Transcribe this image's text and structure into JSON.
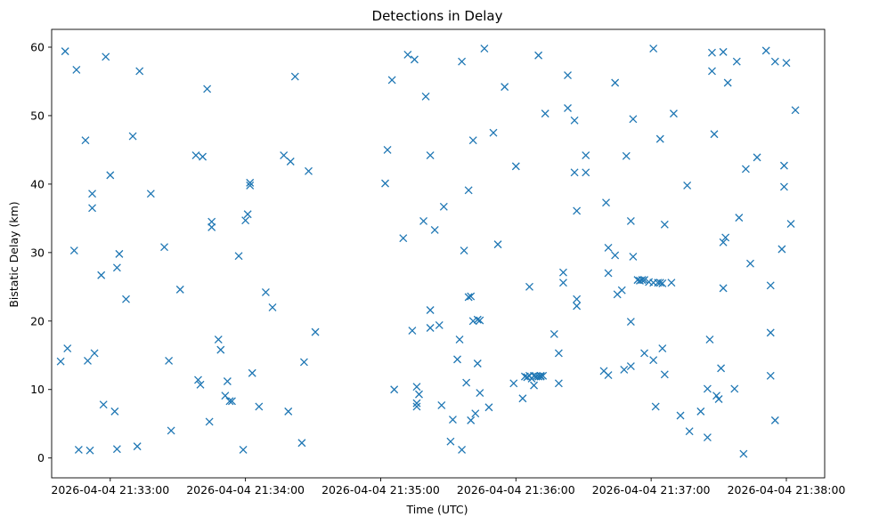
{
  "chart_data": {
    "type": "scatter",
    "title": "Detections in Delay",
    "xlabel": "Time (UTC)",
    "ylabel": "Bistatic Delay (km)",
    "x_unit": "seconds since 2026-04-04 21:33:00 UTC",
    "xlim": [
      -26,
      317
    ],
    "ylim": [
      -2.9,
      62.6
    ],
    "xticks": [
      {
        "value": 0,
        "label": "2026-04-04 21:33:00"
      },
      {
        "value": 60,
        "label": "2026-04-04 21:34:00"
      },
      {
        "value": 120,
        "label": "2026-04-04 21:35:00"
      },
      {
        "value": 180,
        "label": "2026-04-04 21:36:00"
      },
      {
        "value": 240,
        "label": "2026-04-04 21:37:00"
      },
      {
        "value": 300,
        "label": "2026-04-04 21:38:00"
      }
    ],
    "yticks": [
      0,
      10,
      20,
      30,
      40,
      50,
      60
    ],
    "marker": "x",
    "color": "#1f77b4",
    "series": [
      {
        "name": "detections",
        "points": [
          [
            -22,
            14.1
          ],
          [
            -20,
            59.4
          ],
          [
            -19,
            16
          ],
          [
            -16,
            30.3
          ],
          [
            -15,
            56.7
          ],
          [
            -14,
            1.2
          ],
          [
            -11,
            46.4
          ],
          [
            -10,
            14.2
          ],
          [
            -9,
            1.1
          ],
          [
            -8,
            38.6
          ],
          [
            -8,
            36.5
          ],
          [
            -7,
            15.3
          ],
          [
            -4,
            26.7
          ],
          [
            -3,
            7.8
          ],
          [
            -2,
            58.6
          ],
          [
            0,
            41.3
          ],
          [
            2,
            6.8
          ],
          [
            3,
            1.3
          ],
          [
            3,
            27.8
          ],
          [
            4,
            29.8
          ],
          [
            7,
            23.2
          ],
          [
            10,
            47
          ],
          [
            12,
            1.7
          ],
          [
            13,
            56.5
          ],
          [
            18,
            38.6
          ],
          [
            24,
            30.8
          ],
          [
            26,
            14.2
          ],
          [
            27,
            4
          ],
          [
            31,
            24.6
          ],
          [
            38,
            44.2
          ],
          [
            39,
            11.4
          ],
          [
            40,
            10.7
          ],
          [
            41,
            44
          ],
          [
            43,
            53.9
          ],
          [
            44,
            5.3
          ],
          [
            45,
            34.5
          ],
          [
            45,
            33.7
          ],
          [
            48,
            17.3
          ],
          [
            49,
            15.8
          ],
          [
            51,
            9.1
          ],
          [
            52,
            11.2
          ],
          [
            53,
            8.3
          ],
          [
            54,
            8.3
          ],
          [
            57,
            29.5
          ],
          [
            59,
            1.2
          ],
          [
            60,
            34.7
          ],
          [
            61,
            35.6
          ],
          [
            62,
            39.8
          ],
          [
            62,
            40.2
          ],
          [
            63,
            12.4
          ],
          [
            66,
            7.5
          ],
          [
            69,
            24.2
          ],
          [
            72,
            22
          ],
          [
            77,
            44.2
          ],
          [
            79,
            6.8
          ],
          [
            80,
            43.3
          ],
          [
            82,
            55.7
          ],
          [
            85,
            2.2
          ],
          [
            86,
            14
          ],
          [
            88,
            41.9
          ],
          [
            91,
            18.4
          ],
          [
            122,
            40.1
          ],
          [
            123,
            45
          ],
          [
            125,
            55.2
          ],
          [
            126,
            10
          ],
          [
            130,
            32.1
          ],
          [
            132,
            58.9
          ],
          [
            134,
            18.6
          ],
          [
            135,
            58.2
          ],
          [
            136,
            10.4
          ],
          [
            136,
            8
          ],
          [
            136,
            7.5
          ],
          [
            137,
            9.3
          ],
          [
            139,
            34.6
          ],
          [
            140,
            52.8
          ],
          [
            142,
            21.6
          ],
          [
            142,
            19
          ],
          [
            142,
            44.2
          ],
          [
            144,
            33.3
          ],
          [
            146,
            19.4
          ],
          [
            147,
            7.7
          ],
          [
            148,
            36.7
          ],
          [
            151,
            2.4
          ],
          [
            152,
            5.6
          ],
          [
            154,
            14.4
          ],
          [
            155,
            17.3
          ],
          [
            156,
            57.9
          ],
          [
            156,
            1.2
          ],
          [
            157,
            30.3
          ],
          [
            158,
            11
          ],
          [
            159,
            39.1
          ],
          [
            159,
            23.5
          ],
          [
            160,
            23.6
          ],
          [
            160,
            5.5
          ],
          [
            161,
            20
          ],
          [
            161,
            46.4
          ],
          [
            162,
            6.5
          ],
          [
            163,
            20.2
          ],
          [
            163,
            13.8
          ],
          [
            164,
            9.5
          ],
          [
            164,
            20.1
          ],
          [
            166,
            59.8
          ],
          [
            168,
            7.4
          ],
          [
            170,
            47.5
          ],
          [
            172,
            31.2
          ],
          [
            175,
            54.2
          ],
          [
            179,
            10.9
          ],
          [
            180,
            42.6
          ],
          [
            183,
            8.7
          ],
          [
            184,
            11.9
          ],
          [
            185,
            11.8
          ],
          [
            186,
            25
          ],
          [
            186,
            12
          ],
          [
            187,
            11.6
          ],
          [
            188,
            10.6
          ],
          [
            188,
            12
          ],
          [
            189,
            11.9
          ],
          [
            190,
            11.9
          ],
          [
            190,
            58.8
          ],
          [
            191,
            11.9
          ],
          [
            191,
            12
          ],
          [
            192,
            12
          ],
          [
            193,
            50.3
          ],
          [
            197,
            18.1
          ],
          [
            199,
            15.3
          ],
          [
            199,
            10.9
          ],
          [
            201,
            27.1
          ],
          [
            201,
            25.6
          ],
          [
            203,
            51.1
          ],
          [
            203,
            55.9
          ],
          [
            206,
            41.7
          ],
          [
            206,
            49.3
          ],
          [
            207,
            36.1
          ],
          [
            207,
            22.2
          ],
          [
            207,
            23.2
          ],
          [
            211,
            41.7
          ],
          [
            211,
            44.2
          ],
          [
            219,
            12.7
          ],
          [
            220,
            37.3
          ],
          [
            221,
            30.7
          ],
          [
            221,
            27
          ],
          [
            221,
            12.1
          ],
          [
            224,
            54.8
          ],
          [
            224,
            29.6
          ],
          [
            225,
            23.9
          ],
          [
            227,
            24.5
          ],
          [
            228,
            12.9
          ],
          [
            229,
            44.1
          ],
          [
            231,
            34.6
          ],
          [
            231,
            13.4
          ],
          [
            231,
            19.9
          ],
          [
            232,
            49.5
          ],
          [
            232,
            29.4
          ],
          [
            234,
            26
          ],
          [
            235,
            25.9
          ],
          [
            236,
            26
          ],
          [
            237,
            26
          ],
          [
            237,
            15.3
          ],
          [
            239,
            25.7
          ],
          [
            241,
            59.8
          ],
          [
            241,
            25.6
          ],
          [
            241,
            14.3
          ],
          [
            242,
            7.5
          ],
          [
            243,
            25.6
          ],
          [
            244,
            25.6
          ],
          [
            244,
            46.6
          ],
          [
            245,
            25.5
          ],
          [
            245,
            16
          ],
          [
            246,
            12.2
          ],
          [
            246,
            34.1
          ],
          [
            249,
            25.6
          ],
          [
            250,
            50.3
          ],
          [
            253,
            6.2
          ],
          [
            256,
            39.8
          ],
          [
            257,
            3.9
          ],
          [
            262,
            6.8
          ],
          [
            265,
            3
          ],
          [
            265,
            10.1
          ],
          [
            266,
            17.3
          ],
          [
            267,
            59.2
          ],
          [
            267,
            56.5
          ],
          [
            268,
            47.3
          ],
          [
            269,
            9.1
          ],
          [
            270,
            8.6
          ],
          [
            271,
            13.1
          ],
          [
            272,
            59.3
          ],
          [
            272,
            24.8
          ],
          [
            272,
            31.5
          ],
          [
            273,
            32.2
          ],
          [
            274,
            54.8
          ],
          [
            277,
            10.1
          ],
          [
            278,
            57.9
          ],
          [
            279,
            35.1
          ],
          [
            281,
            0.6
          ],
          [
            282,
            42.2
          ],
          [
            284,
            28.4
          ],
          [
            287,
            43.9
          ],
          [
            291,
            59.5
          ],
          [
            293,
            18.3
          ],
          [
            293,
            12
          ],
          [
            293,
            25.2
          ],
          [
            295,
            57.9
          ],
          [
            295,
            5.5
          ],
          [
            298,
            30.5
          ],
          [
            299,
            42.7
          ],
          [
            299,
            39.6
          ],
          [
            300,
            57.7
          ],
          [
            302,
            34.2
          ],
          [
            304,
            50.8
          ]
        ]
      }
    ]
  }
}
